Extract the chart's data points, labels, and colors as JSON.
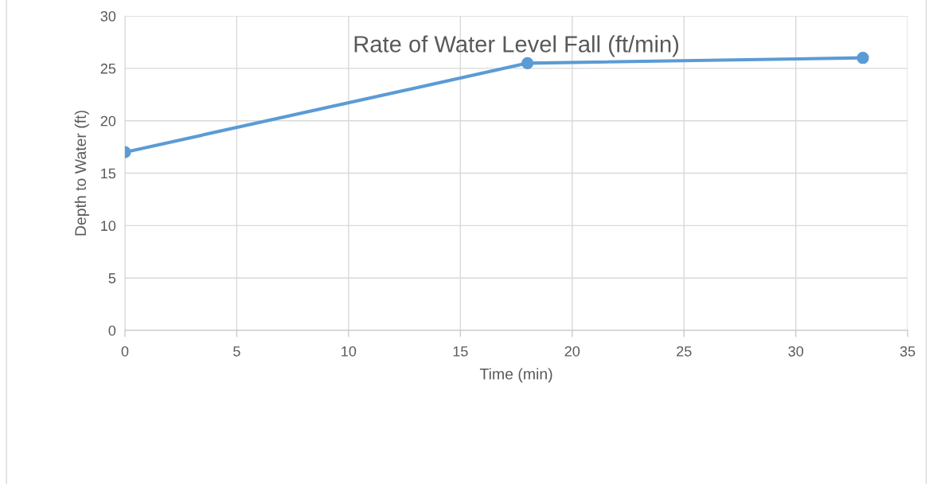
{
  "chart_data": {
    "type": "line",
    "title": "Rate of Water Level Fall (ft/min)",
    "xlabel": "Time (min)",
    "ylabel": "Depth to Water (ft)",
    "x": [
      0,
      18,
      33
    ],
    "series": [
      {
        "color": "#5b9bd5",
        "values": [
          17,
          25.5,
          26
        ]
      }
    ],
    "xlim": [
      0,
      35
    ],
    "xticks": [
      0,
      5,
      10,
      15,
      20,
      25,
      30,
      35
    ],
    "ylim": [
      0,
      30
    ],
    "yticks": [
      0,
      5,
      10,
      15,
      20,
      25,
      30
    ],
    "grid": true,
    "legend": false,
    "marker": "circle",
    "line_style": "solid"
  }
}
